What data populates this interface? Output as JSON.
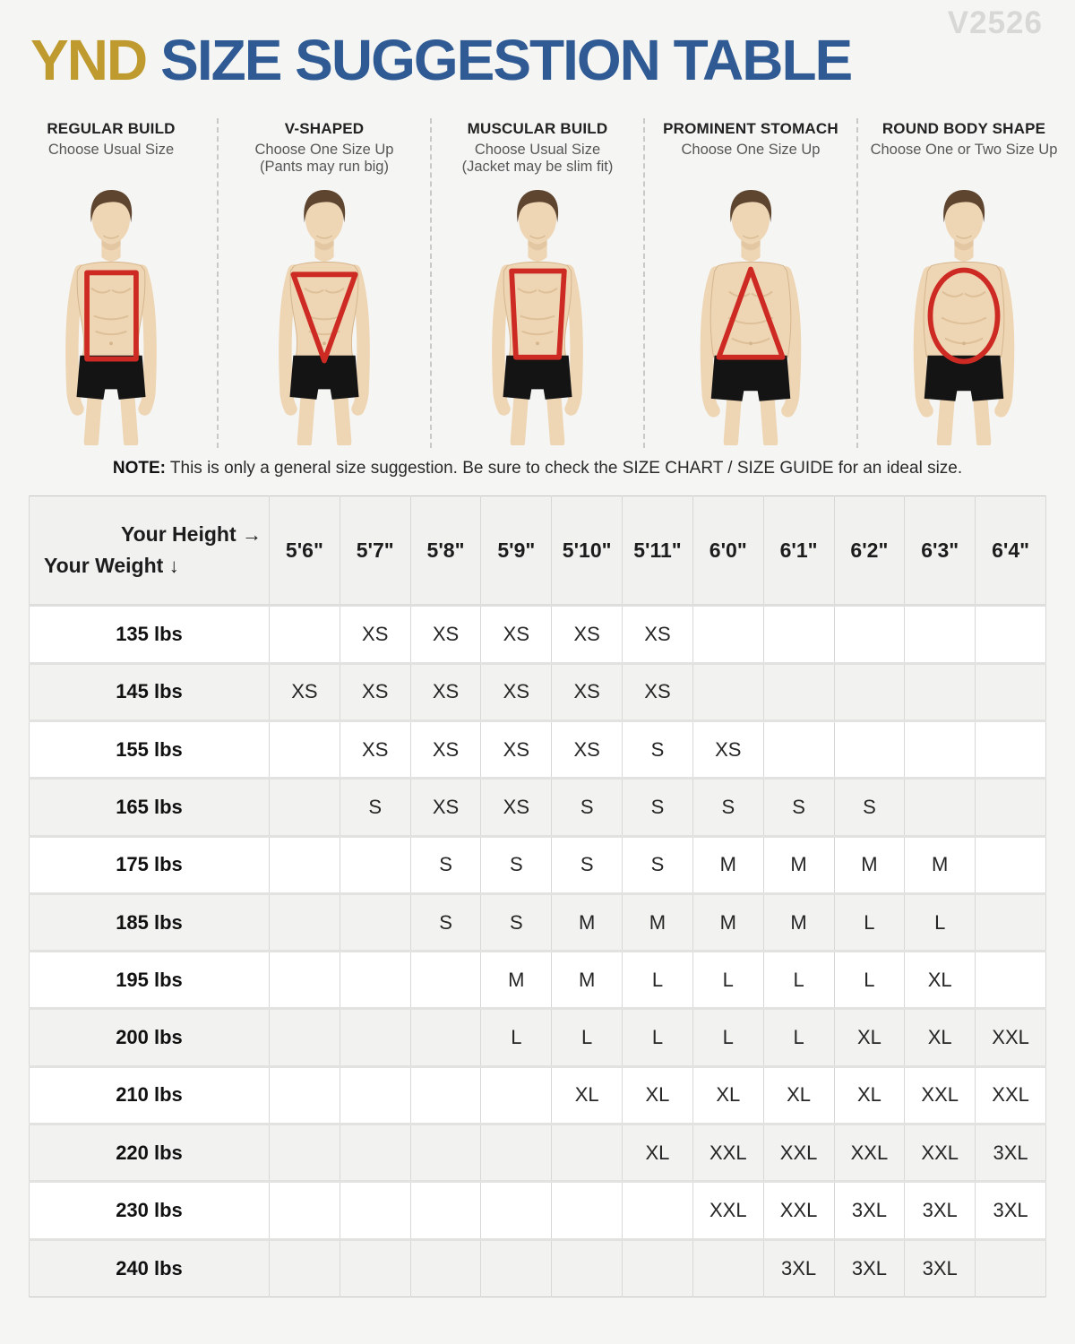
{
  "watermark": "V2526",
  "title": {
    "brand": "YND",
    "rest": "SIZE SUGGESTION TABLE"
  },
  "body_types": [
    {
      "name": "REGULAR BUILD",
      "advice": "Choose Usual Size",
      "note": "",
      "shape": "rectangle"
    },
    {
      "name": "V-SHAPED",
      "advice": "Choose One Size Up",
      "note": "(Pants may run big)",
      "shape": "inverted-triangle"
    },
    {
      "name": "MUSCULAR BUILD",
      "advice": "Choose Usual Size",
      "note": "(Jacket may be slim fit)",
      "shape": "trapezoid"
    },
    {
      "name": "PROMINENT STOMACH",
      "advice": "Choose One Size Up",
      "note": "",
      "shape": "triangle"
    },
    {
      "name": "ROUND BODY SHAPE",
      "advice": "Choose One or Two Size Up",
      "note": "",
      "shape": "oval"
    }
  ],
  "note": {
    "label": "NOTE:",
    "text": "This is only a general size suggestion. Be sure to check the SIZE CHART / SIZE GUIDE for an ideal size."
  },
  "table": {
    "corner": {
      "line1": "Your Height",
      "arrow_right": "→",
      "line2": "Your Weight",
      "arrow_down": "↓"
    },
    "heights": [
      "5'6\"",
      "5'7\"",
      "5'8\"",
      "5'9\"",
      "5'10\"",
      "5'11\"",
      "6'0\"",
      "6'1\"",
      "6'2\"",
      "6'3\"",
      "6'4\""
    ],
    "rows": [
      {
        "weight": "135 lbs",
        "sizes": [
          "",
          "XS",
          "XS",
          "XS",
          "XS",
          "XS",
          "",
          "",
          "",
          "",
          ""
        ]
      },
      {
        "weight": "145 lbs",
        "sizes": [
          "XS",
          "XS",
          "XS",
          "XS",
          "XS",
          "XS",
          "",
          "",
          "",
          "",
          ""
        ]
      },
      {
        "weight": "155 lbs",
        "sizes": [
          "",
          "XS",
          "XS",
          "XS",
          "XS",
          "S",
          "XS",
          "",
          "",
          "",
          ""
        ]
      },
      {
        "weight": "165 lbs",
        "sizes": [
          "",
          "S",
          "XS",
          "XS",
          "S",
          "S",
          "S",
          "S",
          "S",
          "",
          ""
        ]
      },
      {
        "weight": "175 lbs",
        "sizes": [
          "",
          "",
          "S",
          "S",
          "S",
          "S",
          "M",
          "M",
          "M",
          "M",
          ""
        ]
      },
      {
        "weight": "185 lbs",
        "sizes": [
          "",
          "",
          "S",
          "S",
          "M",
          "M",
          "M",
          "M",
          "L",
          "L",
          ""
        ]
      },
      {
        "weight": "195 lbs",
        "sizes": [
          "",
          "",
          "",
          "M",
          "M",
          "L",
          "L",
          "L",
          "L",
          "XL",
          ""
        ]
      },
      {
        "weight": "200 lbs",
        "sizes": [
          "",
          "",
          "",
          "L",
          "L",
          "L",
          "L",
          "L",
          "XL",
          "XL",
          "XXL"
        ]
      },
      {
        "weight": "210 lbs",
        "sizes": [
          "",
          "",
          "",
          "",
          "XL",
          "XL",
          "XL",
          "XL",
          "XL",
          "XXL",
          "XXL"
        ]
      },
      {
        "weight": "220 lbs",
        "sizes": [
          "",
          "",
          "",
          "",
          "",
          "XL",
          "XXL",
          "XXL",
          "XXL",
          "XXL",
          "3XL"
        ]
      },
      {
        "weight": "230 lbs",
        "sizes": [
          "",
          "",
          "",
          "",
          "",
          "",
          "XXL",
          "XXL",
          "3XL",
          "3XL",
          "3XL"
        ]
      },
      {
        "weight": "240 lbs",
        "sizes": [
          "",
          "",
          "",
          "",
          "",
          "",
          "",
          "3XL",
          "3XL",
          "3XL",
          ""
        ]
      }
    ]
  },
  "colors": {
    "brand_gold": "#bf9b2f",
    "brand_blue": "#2f5a94",
    "overlay_red": "#ce2a24",
    "skin": "#eed5b4",
    "skin_shade": "#d5b58c",
    "hair_brown": "#5e4530",
    "shorts_black": "#141414",
    "page_background": "#f5f5f3",
    "row_alt_background": "#f2f2f0"
  }
}
